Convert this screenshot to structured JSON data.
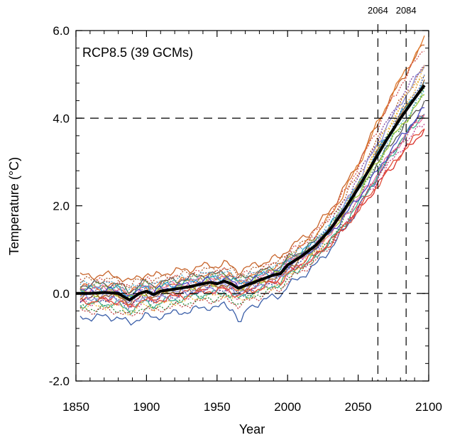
{
  "chart_data": {
    "type": "line",
    "title": "RCP8.5 (39 GCMs)",
    "xlabel": "Year",
    "ylabel": "Temperature (°C)",
    "xlim": [
      1850,
      2100
    ],
    "ylim": [
      -2.0,
      6.0
    ],
    "xticks": [
      1850,
      1900,
      1950,
      2000,
      2050,
      2100
    ],
    "yticks": [
      "-2.0",
      "0.0",
      "2.0",
      "4.0",
      "6.0"
    ],
    "grid": false,
    "reference_lines": {
      "horizontal": [
        0.0,
        4.0
      ],
      "vertical": [
        2064,
        2084
      ],
      "vertical_labels": [
        "2064",
        "2084"
      ]
    },
    "ensemble_mean": {
      "color": "#000000",
      "points": [
        [
          1850,
          0.0
        ],
        [
          1860,
          0.0
        ],
        [
          1870,
          0.02
        ],
        [
          1880,
          0.0
        ],
        [
          1888,
          -0.15
        ],
        [
          1895,
          0.0
        ],
        [
          1900,
          0.05
        ],
        [
          1905,
          -0.03
        ],
        [
          1910,
          0.05
        ],
        [
          1920,
          0.1
        ],
        [
          1930,
          0.15
        ],
        [
          1940,
          0.22
        ],
        [
          1945,
          0.25
        ],
        [
          1950,
          0.22
        ],
        [
          1955,
          0.28
        ],
        [
          1960,
          0.22
        ],
        [
          1965,
          0.12
        ],
        [
          1970,
          0.18
        ],
        [
          1980,
          0.3
        ],
        [
          1990,
          0.42
        ],
        [
          1995,
          0.45
        ],
        [
          2000,
          0.65
        ],
        [
          2010,
          0.85
        ],
        [
          2020,
          1.1
        ],
        [
          2030,
          1.45
        ],
        [
          2040,
          1.9
        ],
        [
          2050,
          2.4
        ],
        [
          2060,
          2.95
        ],
        [
          2070,
          3.5
        ],
        [
          2080,
          4.0
        ],
        [
          2090,
          4.45
        ],
        [
          2097,
          4.75
        ]
      ]
    },
    "models": [
      {
        "color": "#c8642a",
        "style": "solid",
        "offset": 0.4,
        "scale": 1.15
      },
      {
        "color": "#3a5ea8",
        "style": "solid",
        "offset": -0.55,
        "scale": 0.95,
        "dip": -0.6
      },
      {
        "color": "#d9312b",
        "style": "solid",
        "offset": -0.1,
        "scale": 0.8
      },
      {
        "color": "#e07b2e",
        "style": "solid",
        "offset": 0.15,
        "scale": 1.2
      },
      {
        "color": "#2a8a3a",
        "style": "dotted",
        "offset": -0.35,
        "scale": 1.0
      },
      {
        "color": "#7a3fa0",
        "style": "dotted",
        "offset": 0.05,
        "scale": 1.1
      },
      {
        "color": "#1c9ad6",
        "style": "solid",
        "offset": 0.1,
        "scale": 1.0
      },
      {
        "color": "#e4a02a",
        "style": "dotted",
        "offset": -0.05,
        "scale": 1.05
      },
      {
        "color": "#c23b8c",
        "style": "dotted",
        "offset": -0.2,
        "scale": 0.85
      },
      {
        "color": "#5a5a5a",
        "style": "solid",
        "offset": 0.2,
        "scale": 0.9
      },
      {
        "color": "#2f4ea0",
        "style": "dotted",
        "offset": -0.15,
        "scale": 1.05
      },
      {
        "color": "#a0c83a",
        "style": "solid",
        "offset": 0.0,
        "scale": 0.95
      },
      {
        "color": "#d14f4f",
        "style": "dotted",
        "offset": 0.25,
        "scale": 1.15
      },
      {
        "color": "#3fae8e",
        "style": "solid",
        "offset": -0.25,
        "scale": 0.9
      },
      {
        "color": "#b05a2a",
        "style": "dotted",
        "offset": 0.3,
        "scale": 1.05
      },
      {
        "color": "#8a8ad8",
        "style": "solid",
        "offset": -0.1,
        "scale": 1.1
      },
      {
        "color": "#e86fa0",
        "style": "solid",
        "offset": 0.1,
        "scale": 0.85
      },
      {
        "color": "#f0c040",
        "style": "dotted",
        "offset": -0.3,
        "scale": 1.12
      },
      {
        "color": "#4a4ac0",
        "style": "solid",
        "offset": 0.05,
        "scale": 0.88
      },
      {
        "color": "#c04040",
        "style": "dotted",
        "offset": -0.4,
        "scale": 0.92
      },
      {
        "color": "#60b040",
        "style": "dotted",
        "offset": 0.15,
        "scale": 0.98
      },
      {
        "color": "#9a6a3a",
        "style": "solid",
        "offset": -0.05,
        "scale": 1.02
      },
      {
        "color": "#4ab0d0",
        "style": "dotted",
        "offset": 0.2,
        "scale": 0.94
      },
      {
        "color": "#e0503a",
        "style": "solid",
        "offset": -0.18,
        "scale": 0.82
      }
    ]
  }
}
